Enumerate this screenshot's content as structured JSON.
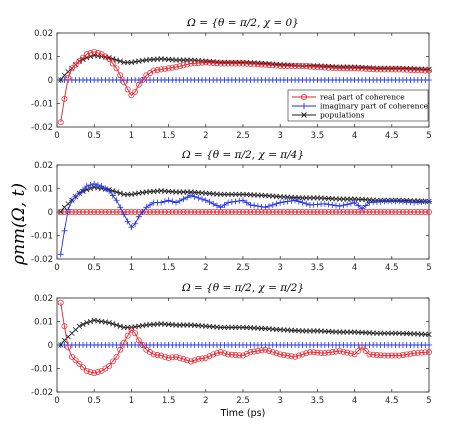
{
  "figure": {
    "ylabel": "ρnm(Ω, t)",
    "xlabel": "Time (ps)"
  },
  "colors": {
    "real": "#e8202a",
    "imag": "#2233e8",
    "pop": "#222222"
  },
  "chart_data": [
    {
      "type": "line",
      "title": "Ω = {θ = π/2, χ = 0}",
      "xlabel": "",
      "ylabel": "",
      "xlim": [
        0,
        5
      ],
      "ylim": [
        -0.02,
        0.02
      ],
      "xticks": [
        "0",
        "0.5",
        "1",
        "1.5",
        "2",
        "2.5",
        "3",
        "3.5",
        "4",
        "4.5",
        "5"
      ],
      "yticks": [
        "0.02",
        "0.01",
        "0",
        "-0.01",
        "-0.02"
      ],
      "grid": false,
      "legend": {
        "location": "lower-right",
        "entries": [
          "real part of coherence",
          "imaginary part of coherence",
          "populations"
        ]
      },
      "series": [
        {
          "name": "real part of coherence",
          "marker": "circle",
          "points": [
            [
              0.05,
              -0.018
            ],
            [
              0.1,
              -0.008
            ],
            [
              0.15,
              0.001
            ],
            [
              0.2,
              0.005
            ],
            [
              0.3,
              0.008
            ],
            [
              0.4,
              0.011
            ],
            [
              0.5,
              0.012
            ],
            [
              0.6,
              0.011
            ],
            [
              0.7,
              0.009
            ],
            [
              0.8,
              0.005
            ],
            [
              0.9,
              -0.001
            ],
            [
              0.95,
              -0.004
            ],
            [
              1.0,
              -0.0065
            ],
            [
              1.05,
              -0.005
            ],
            [
              1.1,
              -0.002
            ],
            [
              1.2,
              0.002
            ],
            [
              1.3,
              0.004
            ],
            [
              1.4,
              0.0045
            ],
            [
              1.5,
              0.005
            ],
            [
              1.6,
              0.0055
            ],
            [
              1.8,
              0.007
            ],
            [
              2.0,
              0.0075
            ],
            [
              2.2,
              0.007
            ],
            [
              2.5,
              0.007
            ],
            [
              2.8,
              0.0065
            ],
            [
              3.0,
              0.006
            ],
            [
              3.3,
              0.006
            ],
            [
              3.5,
              0.0055
            ],
            [
              3.8,
              0.005
            ],
            [
              4.0,
              0.005
            ],
            [
              4.3,
              0.0045
            ],
            [
              4.6,
              0.0045
            ],
            [
              5.0,
              0.004
            ]
          ]
        },
        {
          "name": "imaginary part of coherence",
          "marker": "plus",
          "points": [
            [
              0.05,
              0.0
            ],
            [
              1.0,
              0.0
            ],
            [
              2.0,
              0.0
            ],
            [
              3.0,
              0.0
            ],
            [
              4.0,
              0.0
            ],
            [
              5.0,
              0.0
            ]
          ]
        },
        {
          "name": "populations",
          "marker": "x",
          "points": [
            [
              0.05,
              0.0
            ],
            [
              0.1,
              0.002
            ],
            [
              0.2,
              0.005
            ],
            [
              0.3,
              0.008
            ],
            [
              0.4,
              0.0095
            ],
            [
              0.5,
              0.0105
            ],
            [
              0.6,
              0.01
            ],
            [
              0.7,
              0.0095
            ],
            [
              0.8,
              0.0085
            ],
            [
              0.9,
              0.0075
            ],
            [
              1.0,
              0.0075
            ],
            [
              1.2,
              0.0085
            ],
            [
              1.4,
              0.009
            ],
            [
              1.6,
              0.0085
            ],
            [
              1.8,
              0.0085
            ],
            [
              2.0,
              0.008
            ],
            [
              2.2,
              0.0075
            ],
            [
              2.5,
              0.0075
            ],
            [
              2.8,
              0.007
            ],
            [
              3.0,
              0.0065
            ],
            [
              3.3,
              0.006
            ],
            [
              3.5,
              0.006
            ],
            [
              3.8,
              0.0055
            ],
            [
              4.0,
              0.0055
            ],
            [
              4.3,
              0.005
            ],
            [
              4.6,
              0.005
            ],
            [
              5.0,
              0.0045
            ]
          ]
        }
      ]
    },
    {
      "type": "line",
      "title": "Ω = {θ = π/2, χ = π/4}",
      "xlabel": "",
      "ylabel": "",
      "xlim": [
        0,
        5
      ],
      "ylim": [
        -0.02,
        0.02
      ],
      "xticks": [
        "0",
        "0.5",
        "1",
        "1.5",
        "2",
        "2.5",
        "3",
        "3.5",
        "4",
        "4.5",
        "5"
      ],
      "yticks": [
        "0.02",
        "0.01",
        "0",
        "-0.01",
        "-0.02"
      ],
      "grid": false,
      "series": [
        {
          "name": "real part of coherence",
          "marker": "circle",
          "points": [
            [
              0.05,
              0.0
            ],
            [
              1.0,
              0.0
            ],
            [
              2.0,
              0.0
            ],
            [
              3.0,
              0.0
            ],
            [
              4.0,
              0.0
            ],
            [
              5.0,
              0.0
            ]
          ]
        },
        {
          "name": "imaginary part of coherence",
          "marker": "plus",
          "points": [
            [
              0.05,
              -0.018
            ],
            [
              0.1,
              -0.008
            ],
            [
              0.15,
              0.001
            ],
            [
              0.2,
              0.005
            ],
            [
              0.3,
              0.008
            ],
            [
              0.4,
              0.011
            ],
            [
              0.5,
              0.012
            ],
            [
              0.6,
              0.011
            ],
            [
              0.7,
              0.009
            ],
            [
              0.8,
              0.005
            ],
            [
              0.9,
              -0.001
            ],
            [
              0.95,
              -0.004
            ],
            [
              1.0,
              -0.0065
            ],
            [
              1.05,
              -0.005
            ],
            [
              1.1,
              -0.002
            ],
            [
              1.2,
              0.002
            ],
            [
              1.3,
              0.004
            ],
            [
              1.4,
              0.004
            ],
            [
              1.5,
              0.005
            ],
            [
              1.6,
              0.004
            ],
            [
              1.7,
              0.0055
            ],
            [
              1.8,
              0.007
            ],
            [
              1.9,
              0.006
            ],
            [
              2.0,
              0.005
            ],
            [
              2.1,
              0.0035
            ],
            [
              2.2,
              0.002
            ],
            [
              2.3,
              0.004
            ],
            [
              2.5,
              0.005
            ],
            [
              2.6,
              0.003
            ],
            [
              2.8,
              0.002
            ],
            [
              3.0,
              0.004
            ],
            [
              3.2,
              0.005
            ],
            [
              3.4,
              0.003
            ],
            [
              3.6,
              0.0035
            ],
            [
              3.8,
              0.0025
            ],
            [
              4.0,
              0.004
            ],
            [
              4.1,
              0.0015
            ],
            [
              4.2,
              0.004
            ],
            [
              4.4,
              0.0045
            ],
            [
              4.6,
              0.0045
            ],
            [
              4.8,
              0.004
            ],
            [
              5.0,
              0.0045
            ]
          ]
        },
        {
          "name": "populations",
          "marker": "x",
          "points": [
            [
              0.05,
              0.0
            ],
            [
              0.1,
              0.002
            ],
            [
              0.2,
              0.005
            ],
            [
              0.3,
              0.008
            ],
            [
              0.4,
              0.0095
            ],
            [
              0.5,
              0.0105
            ],
            [
              0.6,
              0.01
            ],
            [
              0.7,
              0.0095
            ],
            [
              0.8,
              0.0085
            ],
            [
              0.9,
              0.0075
            ],
            [
              1.0,
              0.0075
            ],
            [
              1.2,
              0.0085
            ],
            [
              1.4,
              0.009
            ],
            [
              1.6,
              0.0085
            ],
            [
              1.8,
              0.0085
            ],
            [
              2.0,
              0.008
            ],
            [
              2.2,
              0.0075
            ],
            [
              2.5,
              0.0075
            ],
            [
              2.8,
              0.007
            ],
            [
              3.0,
              0.0065
            ],
            [
              3.3,
              0.006
            ],
            [
              3.5,
              0.006
            ],
            [
              3.8,
              0.0055
            ],
            [
              4.0,
              0.0055
            ],
            [
              4.3,
              0.005
            ],
            [
              4.6,
              0.005
            ],
            [
              5.0,
              0.0045
            ]
          ]
        }
      ]
    },
    {
      "type": "line",
      "title": "Ω = {θ = π/2, χ = π/2}",
      "xlabel": "Time (ps)",
      "ylabel": "",
      "xlim": [
        0,
        5
      ],
      "ylim": [
        -0.02,
        0.02
      ],
      "xticks": [
        "0",
        "0.5",
        "1",
        "1.5",
        "2",
        "2.5",
        "3",
        "3.5",
        "4",
        "4.5",
        "5"
      ],
      "yticks": [
        "0.02",
        "0.01",
        "0",
        "-0.01",
        "-0.02"
      ],
      "grid": false,
      "series": [
        {
          "name": "real part of coherence",
          "marker": "circle",
          "points": [
            [
              0.05,
              0.018
            ],
            [
              0.1,
              0.008
            ],
            [
              0.15,
              -0.001
            ],
            [
              0.2,
              -0.005
            ],
            [
              0.3,
              -0.008
            ],
            [
              0.4,
              -0.011
            ],
            [
              0.5,
              -0.012
            ],
            [
              0.6,
              -0.011
            ],
            [
              0.7,
              -0.009
            ],
            [
              0.8,
              -0.005
            ],
            [
              0.9,
              0.001
            ],
            [
              0.95,
              0.004
            ],
            [
              1.0,
              0.0065
            ],
            [
              1.05,
              0.005
            ],
            [
              1.1,
              0.002
            ],
            [
              1.2,
              -0.002
            ],
            [
              1.3,
              -0.004
            ],
            [
              1.4,
              -0.0045
            ],
            [
              1.5,
              -0.0055
            ],
            [
              1.6,
              -0.005
            ],
            [
              1.7,
              -0.006
            ],
            [
              1.8,
              -0.007
            ],
            [
              1.9,
              -0.006
            ],
            [
              2.0,
              -0.0055
            ],
            [
              2.1,
              -0.004
            ],
            [
              2.2,
              -0.003
            ],
            [
              2.3,
              -0.004
            ],
            [
              2.5,
              -0.0045
            ],
            [
              2.6,
              -0.003
            ],
            [
              2.8,
              -0.002
            ],
            [
              3.0,
              -0.004
            ],
            [
              3.2,
              -0.005
            ],
            [
              3.4,
              -0.003
            ],
            [
              3.6,
              -0.0035
            ],
            [
              3.8,
              -0.0025
            ],
            [
              4.0,
              -0.004
            ],
            [
              4.1,
              -0.001
            ],
            [
              4.2,
              -0.004
            ],
            [
              4.4,
              -0.0045
            ],
            [
              4.6,
              -0.0045
            ],
            [
              4.8,
              -0.0035
            ],
            [
              5.0,
              -0.003
            ]
          ]
        },
        {
          "name": "imaginary part of coherence",
          "marker": "plus",
          "points": [
            [
              0.05,
              0.0
            ],
            [
              1.0,
              0.0
            ],
            [
              2.0,
              0.0
            ],
            [
              3.0,
              0.0
            ],
            [
              4.0,
              0.0
            ],
            [
              5.0,
              0.0
            ]
          ]
        },
        {
          "name": "populations",
          "marker": "x",
          "points": [
            [
              0.05,
              0.0
            ],
            [
              0.1,
              0.002
            ],
            [
              0.2,
              0.005
            ],
            [
              0.3,
              0.008
            ],
            [
              0.4,
              0.0095
            ],
            [
              0.5,
              0.0105
            ],
            [
              0.6,
              0.01
            ],
            [
              0.7,
              0.0095
            ],
            [
              0.8,
              0.0085
            ],
            [
              0.9,
              0.0075
            ],
            [
              1.0,
              0.0075
            ],
            [
              1.2,
              0.0085
            ],
            [
              1.4,
              0.009
            ],
            [
              1.6,
              0.0085
            ],
            [
              1.8,
              0.0085
            ],
            [
              2.0,
              0.008
            ],
            [
              2.2,
              0.0075
            ],
            [
              2.5,
              0.0075
            ],
            [
              2.8,
              0.007
            ],
            [
              3.0,
              0.0065
            ],
            [
              3.3,
              0.006
            ],
            [
              3.5,
              0.006
            ],
            [
              3.8,
              0.0055
            ],
            [
              4.0,
              0.0055
            ],
            [
              4.3,
              0.005
            ],
            [
              4.6,
              0.005
            ],
            [
              5.0,
              0.0045
            ]
          ]
        }
      ]
    }
  ]
}
